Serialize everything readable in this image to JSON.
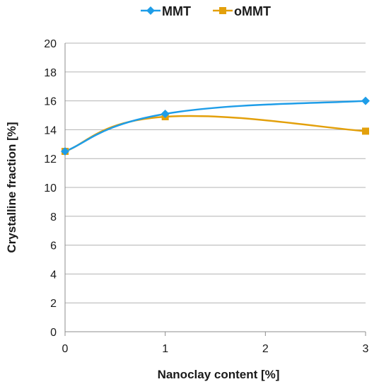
{
  "chart_data": {
    "type": "line",
    "xlabel": "Nanoclay content [%]",
    "ylabel": "Crystalline fraction [%]",
    "xlim": [
      0,
      3
    ],
    "ylim": [
      0,
      20
    ],
    "xticks": [
      "0",
      "1",
      "2",
      "3"
    ],
    "yticks": [
      "0",
      "2",
      "4",
      "6",
      "8",
      "10",
      "12",
      "14",
      "16",
      "18",
      "20"
    ],
    "grid": "horizontal",
    "legend_position": "top",
    "smoothed": true,
    "series": [
      {
        "name": "MMT",
        "color": "#1e9de8",
        "marker": "diamond",
        "x": [
          0,
          1,
          3
        ],
        "y": [
          12.5,
          15.1,
          16.0
        ]
      },
      {
        "name": "oMMT",
        "color": "#e3a00b",
        "marker": "square",
        "x": [
          0,
          1,
          3
        ],
        "y": [
          12.5,
          14.9,
          13.9
        ]
      }
    ]
  }
}
